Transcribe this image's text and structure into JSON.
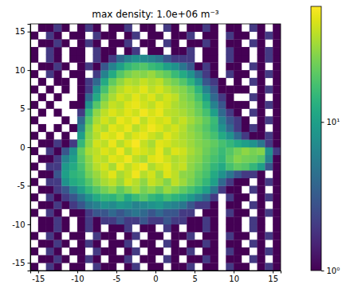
{
  "chart_data": {
    "type": "heatmap",
    "title": "max density: 1.0e+06 m⁻³",
    "xlim": [
      -16,
      16
    ],
    "ylim": [
      -16,
      16
    ],
    "xticks": [
      -15,
      -10,
      -5,
      0,
      5,
      10,
      15
    ],
    "yticks": [
      -15,
      -10,
      -5,
      0,
      5,
      10,
      15
    ],
    "log": true,
    "colorbar_range": [
      1,
      60
    ],
    "colorbar_ticks": [
      {
        "value": 1,
        "label": "10⁰"
      },
      {
        "value": 10,
        "label": "10¹"
      }
    ],
    "x_edges": [
      -16,
      -15,
      -14,
      -13,
      -12,
      -11,
      -10,
      -9,
      -8,
      -7,
      -6,
      -5,
      -4,
      -3,
      -2,
      -1,
      0,
      1,
      2,
      3,
      4,
      5,
      6,
      7,
      8,
      9,
      10,
      11,
      12,
      13,
      14,
      15,
      16
    ],
    "y_edges": [
      -16,
      -15,
      -14,
      -13,
      -12,
      -11,
      -10,
      -9,
      -8,
      -7,
      -6,
      -5,
      -4,
      -3,
      -2,
      -1,
      0,
      1,
      2,
      3,
      4,
      5,
      6,
      7,
      8,
      9,
      10,
      11,
      12,
      13,
      14,
      15,
      16
    ],
    "z": [
      [
        1,
        null,
        2,
        1,
        null,
        1,
        1,
        null,
        2,
        1,
        1,
        null,
        1,
        2,
        null,
        1,
        1,
        null,
        1,
        1,
        2,
        null,
        1,
        1,
        null,
        2,
        1,
        1,
        null,
        1,
        2,
        1
      ],
      [
        null,
        1,
        1,
        2,
        1,
        null,
        1,
        2,
        1,
        null,
        1,
        1,
        2,
        null,
        1,
        1,
        null,
        2,
        1,
        null,
        1,
        1,
        2,
        1,
        null,
        1,
        1,
        null,
        2,
        1,
        null,
        1
      ],
      [
        1,
        null,
        2,
        1,
        null,
        1,
        1,
        null,
        2,
        1,
        1,
        null,
        1,
        2,
        null,
        1,
        1,
        null,
        1,
        1,
        2,
        null,
        1,
        1,
        null,
        2,
        1,
        1,
        null,
        1,
        2,
        1
      ],
      [
        null,
        1,
        1,
        2,
        1,
        null,
        1,
        2,
        1,
        null,
        1,
        1,
        2,
        null,
        1,
        1,
        null,
        2,
        1,
        null,
        1,
        1,
        2,
        1,
        null,
        1,
        1,
        null,
        2,
        1,
        null,
        1
      ],
      [
        1,
        null,
        2,
        1,
        null,
        1,
        1,
        null,
        2,
        1,
        1,
        null,
        1,
        2,
        null,
        1,
        1,
        null,
        1,
        1,
        2,
        null,
        1,
        1,
        null,
        2,
        1,
        1,
        null,
        1,
        2,
        1
      ],
      [
        null,
        1,
        1,
        2,
        1,
        null,
        1,
        2,
        1,
        null,
        1,
        1,
        2,
        null,
        1,
        1,
        null,
        2,
        1,
        null,
        1,
        1,
        2,
        1,
        null,
        1,
        1,
        null,
        2,
        1,
        null,
        1
      ],
      [
        null,
        1,
        1,
        2,
        1,
        null,
        1,
        2,
        1,
        2,
        2,
        3,
        2,
        2,
        3,
        2,
        2,
        3,
        2,
        2,
        1,
        1,
        2,
        1,
        null,
        1,
        1,
        null,
        2,
        1,
        null,
        1
      ],
      [
        1,
        null,
        2,
        1,
        null,
        1,
        1,
        2,
        3,
        3,
        4,
        3,
        4,
        5,
        4,
        3,
        4,
        3,
        3,
        2,
        2,
        null,
        1,
        1,
        null,
        2,
        1,
        1,
        null,
        1,
        2,
        1
      ],
      [
        null,
        1,
        1,
        2,
        1,
        2,
        3,
        5,
        6,
        8,
        7,
        9,
        8,
        6,
        7,
        8,
        9,
        7,
        6,
        5,
        3,
        2,
        2,
        1,
        null,
        1,
        1,
        null,
        2,
        1,
        null,
        1
      ],
      [
        1,
        null,
        2,
        1,
        2,
        3,
        5,
        8,
        12,
        15,
        14,
        18,
        12,
        16,
        20,
        15,
        13,
        17,
        14,
        12,
        9,
        6,
        4,
        2,
        null,
        2,
        1,
        1,
        null,
        1,
        2,
        1
      ],
      [
        null,
        1,
        1,
        2,
        3,
        6,
        10,
        15,
        20,
        25,
        30,
        22,
        28,
        35,
        26,
        30,
        24,
        32,
        27,
        22,
        18,
        14,
        10,
        5,
        2,
        1,
        1,
        null,
        2,
        1,
        null,
        1
      ],
      [
        1,
        null,
        2,
        2,
        8,
        12,
        14,
        20,
        28,
        35,
        40,
        32,
        45,
        38,
        30,
        42,
        36,
        28,
        40,
        33,
        26,
        20,
        15,
        10,
        4,
        2,
        1,
        1,
        null,
        1,
        2,
        1
      ],
      [
        null,
        1,
        1,
        3,
        10,
        14,
        16,
        25,
        32,
        40,
        50,
        35,
        42,
        55,
        38,
        45,
        33,
        48,
        40,
        30,
        28,
        22,
        18,
        12,
        8,
        5,
        3,
        2,
        2,
        1,
        null,
        1
      ],
      [
        1,
        null,
        2,
        2,
        9,
        12,
        18,
        28,
        38,
        45,
        35,
        52,
        40,
        48,
        55,
        36,
        44,
        50,
        38,
        42,
        30,
        25,
        20,
        15,
        12,
        18,
        22,
        20,
        15,
        10,
        3,
        1
      ],
      [
        null,
        1,
        1,
        2,
        6,
        10,
        20,
        30,
        42,
        38,
        50,
        45,
        55,
        40,
        35,
        48,
        52,
        44,
        36,
        40,
        32,
        28,
        22,
        18,
        15,
        22,
        28,
        25,
        24,
        20,
        6,
        1
      ],
      [
        1,
        null,
        2,
        1,
        3,
        8,
        22,
        35,
        40,
        48,
        42,
        55,
        38,
        50,
        45,
        40,
        52,
        36,
        48,
        44,
        35,
        30,
        24,
        20,
        16,
        20,
        25,
        30,
        26,
        28,
        8,
        2
      ],
      [
        null,
        1,
        1,
        2,
        1,
        2,
        15,
        30,
        45,
        40,
        52,
        38,
        48,
        58,
        42,
        35,
        50,
        46,
        40,
        38,
        33,
        28,
        25,
        22,
        18,
        15,
        12,
        10,
        8,
        5,
        2,
        1
      ],
      [
        1,
        null,
        1,
        null,
        1,
        null,
        10,
        28,
        38,
        50,
        45,
        55,
        40,
        48,
        52,
        44,
        38,
        50,
        42,
        36,
        32,
        27,
        22,
        18,
        12,
        8,
        4,
        2,
        1,
        1,
        2,
        1
      ],
      [
        null,
        1,
        null,
        1,
        null,
        1,
        6,
        25,
        42,
        36,
        50,
        44,
        52,
        38,
        46,
        55,
        48,
        40,
        45,
        38,
        30,
        25,
        20,
        15,
        8,
        4,
        2,
        1,
        2,
        1,
        null,
        1
      ],
      [
        1,
        null,
        null,
        null,
        1,
        null,
        4,
        20,
        35,
        45,
        38,
        52,
        46,
        55,
        40,
        50,
        44,
        48,
        36,
        42,
        34,
        28,
        22,
        16,
        6,
        3,
        2,
        1,
        null,
        1,
        2,
        1
      ],
      [
        null,
        1,
        null,
        1,
        null,
        null,
        2,
        15,
        30,
        40,
        48,
        42,
        50,
        44,
        55,
        46,
        52,
        40,
        38,
        35,
        30,
        24,
        18,
        10,
        4,
        2,
        1,
        null,
        2,
        1,
        null,
        1
      ],
      [
        1,
        null,
        1,
        null,
        null,
        1,
        1,
        8,
        20,
        32,
        42,
        38,
        48,
        52,
        45,
        40,
        50,
        44,
        36,
        32,
        28,
        22,
        14,
        6,
        3,
        1,
        1,
        1,
        null,
        1,
        2,
        1
      ],
      [
        null,
        1,
        null,
        1,
        null,
        null,
        1,
        4,
        12,
        25,
        35,
        45,
        40,
        50,
        42,
        48,
        38,
        45,
        40,
        30,
        25,
        18,
        10,
        4,
        2,
        1,
        null,
        null,
        2,
        1,
        null,
        1
      ],
      [
        1,
        null,
        1,
        null,
        1,
        null,
        1,
        2,
        8,
        18,
        30,
        38,
        45,
        42,
        50,
        40,
        46,
        38,
        32,
        28,
        22,
        14,
        6,
        3,
        1,
        1,
        1,
        1,
        null,
        1,
        2,
        1
      ],
      [
        null,
        1,
        null,
        1,
        1,
        null,
        1,
        2,
        4,
        12,
        22,
        30,
        38,
        35,
        42,
        36,
        40,
        30,
        25,
        20,
        14,
        8,
        3,
        2,
        1,
        null,
        1,
        null,
        2,
        1,
        null,
        1
      ],
      [
        1,
        null,
        2,
        1,
        null,
        1,
        1,
        null,
        2,
        6,
        12,
        20,
        26,
        30,
        28,
        32,
        26,
        22,
        16,
        12,
        8,
        4,
        2,
        1,
        null,
        2,
        1,
        1,
        null,
        1,
        2,
        1
      ],
      [
        null,
        1,
        1,
        2,
        1,
        null,
        1,
        2,
        1,
        3,
        6,
        10,
        15,
        18,
        20,
        16,
        14,
        10,
        8,
        5,
        3,
        1,
        2,
        1,
        null,
        1,
        1,
        null,
        2,
        1,
        null,
        1
      ],
      [
        1,
        null,
        2,
        1,
        null,
        1,
        1,
        null,
        2,
        1,
        2,
        4,
        6,
        8,
        7,
        6,
        5,
        3,
        2,
        2,
        2,
        null,
        1,
        1,
        null,
        2,
        1,
        1,
        null,
        1,
        2,
        1
      ],
      [
        1,
        null,
        2,
        1,
        null,
        1,
        1,
        null,
        2,
        1,
        1,
        null,
        1,
        2,
        null,
        1,
        1,
        null,
        1,
        1,
        2,
        null,
        1,
        1,
        null,
        2,
        1,
        1,
        null,
        1,
        2,
        1
      ],
      [
        null,
        1,
        1,
        2,
        1,
        null,
        1,
        2,
        1,
        null,
        1,
        1,
        2,
        null,
        1,
        1,
        null,
        2,
        1,
        null,
        1,
        1,
        2,
        1,
        null,
        1,
        1,
        null,
        2,
        1,
        null,
        1
      ],
      [
        1,
        null,
        2,
        1,
        null,
        1,
        1,
        null,
        2,
        1,
        1,
        null,
        1,
        2,
        null,
        1,
        1,
        null,
        1,
        1,
        2,
        null,
        1,
        1,
        null,
        2,
        1,
        1,
        null,
        1,
        2,
        1
      ],
      [
        null,
        1,
        1,
        2,
        1,
        null,
        1,
        2,
        1,
        null,
        1,
        1,
        2,
        null,
        1,
        1,
        null,
        2,
        1,
        null,
        1,
        1,
        2,
        1,
        null,
        1,
        1,
        null,
        2,
        1,
        null,
        1
      ]
    ]
  }
}
